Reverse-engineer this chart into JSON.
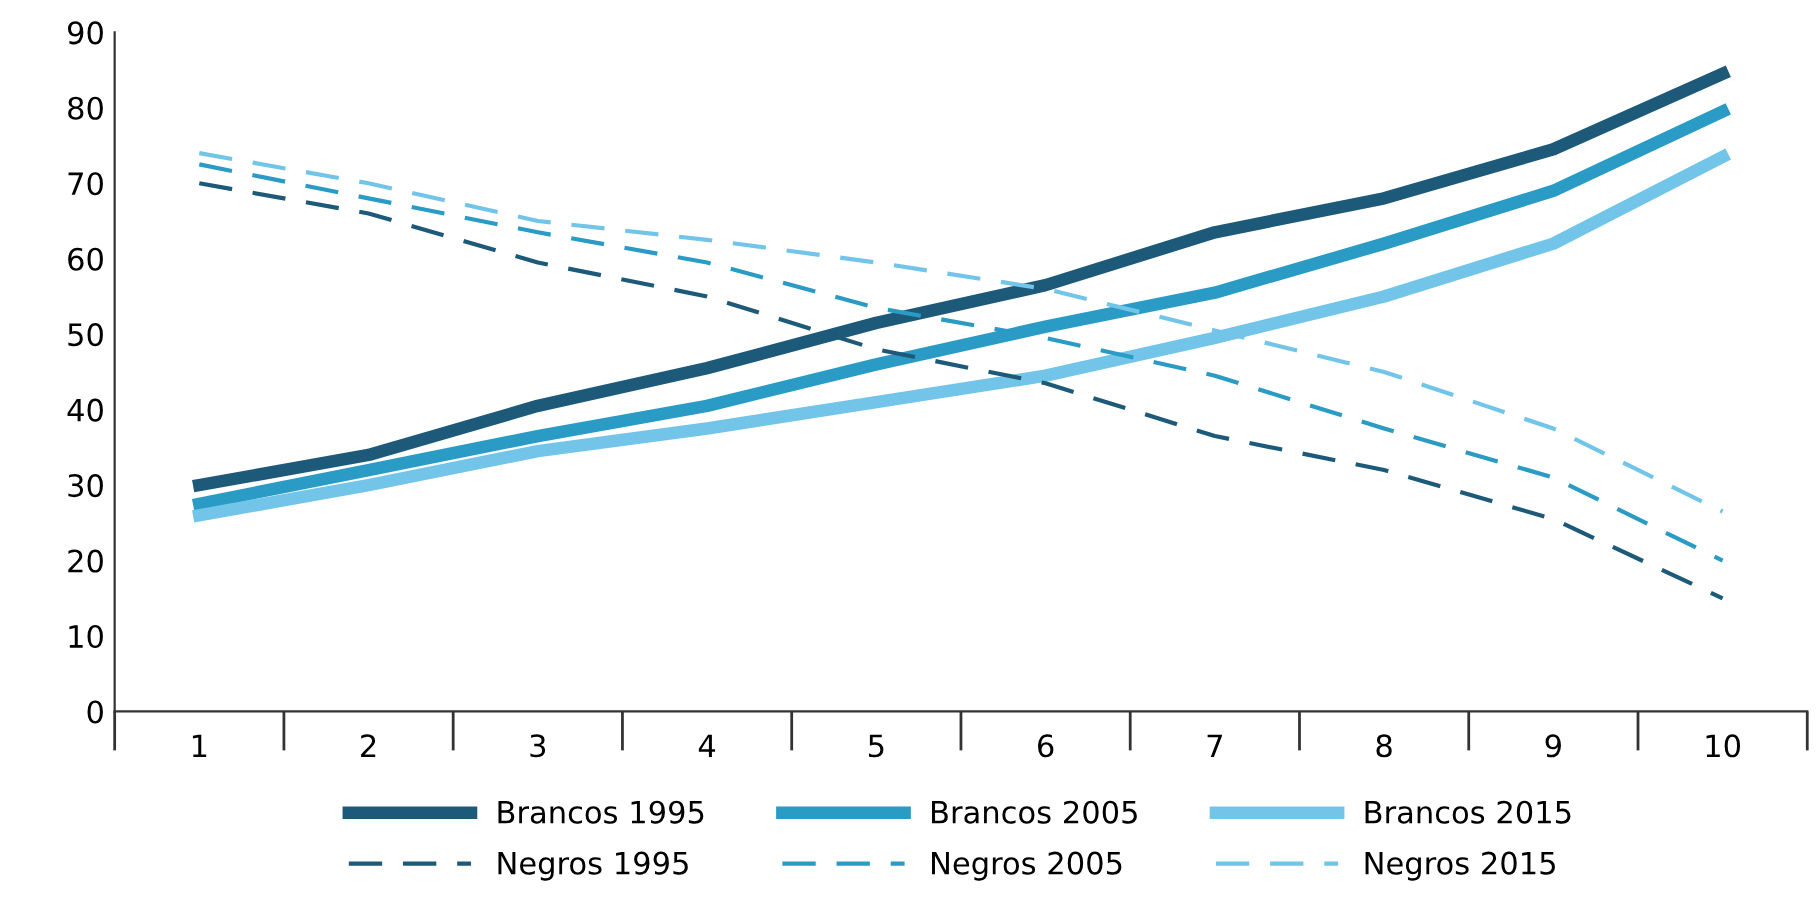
{
  "chart_data": {
    "type": "line",
    "categories": [
      "1",
      "2",
      "3",
      "4",
      "5",
      "6",
      "7",
      "8",
      "9",
      "10"
    ],
    "series": [
      {
        "name": "Brancos 1995",
        "color": "#1d5a7a",
        "line_style": "solid",
        "values": [
          30,
          34,
          40.5,
          45.5,
          51.5,
          56.5,
          63.5,
          68,
          74.5,
          84.5
        ]
      },
      {
        "name": "Brancos 2005",
        "color": "#2a9bc4",
        "line_style": "solid",
        "values": [
          27.5,
          32,
          36.5,
          40.5,
          46,
          51,
          55.5,
          62,
          69,
          79.5
        ]
      },
      {
        "name": "Brancos 2015",
        "color": "#72c5e8",
        "line_style": "solid",
        "values": [
          26,
          30,
          34.5,
          37.5,
          41,
          44.5,
          49.5,
          55,
          62,
          73.5
        ]
      },
      {
        "name": "Negros 1995",
        "color": "#1d5a7a",
        "line_style": "dashed",
        "values": [
          70,
          66,
          59.5,
          55,
          48,
          43.5,
          36.5,
          32,
          25.5,
          15
        ]
      },
      {
        "name": "Negros 2005",
        "color": "#2a9bc4",
        "line_style": "dashed",
        "values": [
          72.5,
          68,
          63.5,
          59.5,
          53.5,
          49.5,
          44.5,
          37.5,
          31,
          20
        ]
      },
      {
        "name": "Negros 2015",
        "color": "#72c5e8",
        "line_style": "dashed",
        "values": [
          74,
          70,
          65,
          62.5,
          59.5,
          56,
          50.5,
          45,
          37.5,
          26.5
        ]
      }
    ],
    "ylim": [
      0,
      90
    ],
    "yticks": [
      0,
      10,
      20,
      30,
      40,
      50,
      60,
      70,
      80,
      90
    ],
    "grid": false,
    "legend": "bottom",
    "marker": "none"
  }
}
